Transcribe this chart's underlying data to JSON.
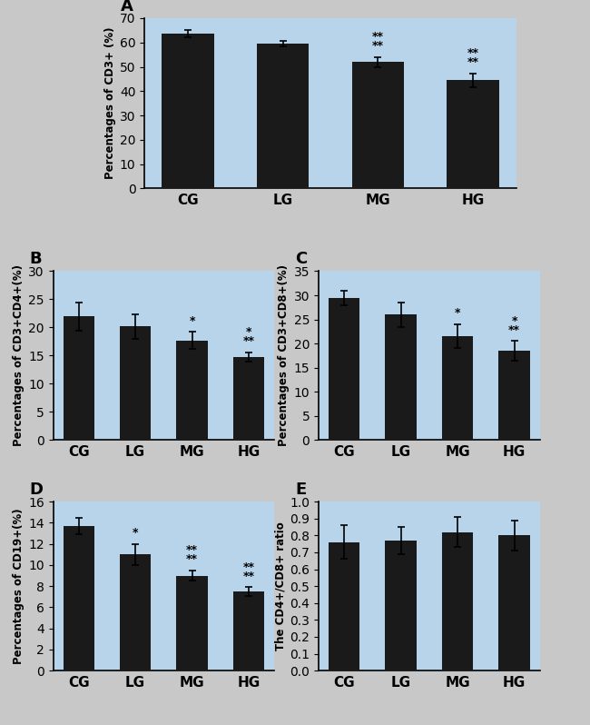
{
  "categories": [
    "CG",
    "LG",
    "MG",
    "HG"
  ],
  "panel_A": {
    "label": "A",
    "values": [
      63.5,
      59.5,
      52.0,
      44.5
    ],
    "errors": [
      1.5,
      1.2,
      2.0,
      2.8
    ],
    "ylabel": "Percentages of CD3+ (%)",
    "ylim": [
      0,
      70
    ],
    "yticks": [
      0,
      10,
      20,
      30,
      40,
      50,
      60,
      70
    ],
    "significance": [
      "",
      "",
      "**\n**",
      "**\n**"
    ]
  },
  "panel_B": {
    "label": "B",
    "values": [
      22.0,
      20.2,
      17.7,
      14.8
    ],
    "errors": [
      2.5,
      2.2,
      1.5,
      0.8
    ],
    "ylabel": "Percentages of CD3+CD4+(%)",
    "ylim": [
      0,
      30
    ],
    "yticks": [
      0,
      5,
      10,
      15,
      20,
      25,
      30
    ],
    "significance": [
      "",
      "",
      "*",
      "**\n*"
    ]
  },
  "panel_C": {
    "label": "C",
    "values": [
      29.5,
      26.0,
      21.5,
      18.5
    ],
    "errors": [
      1.5,
      2.5,
      2.5,
      2.0
    ],
    "ylabel": "Percentages of CD3+CD8+(%)",
    "ylim": [
      0,
      35
    ],
    "yticks": [
      0,
      5,
      10,
      15,
      20,
      25,
      30,
      35
    ],
    "significance": [
      "",
      "",
      "*",
      "**\n*"
    ]
  },
  "panel_D": {
    "label": "D",
    "values": [
      13.7,
      11.0,
      9.0,
      7.5
    ],
    "errors": [
      0.8,
      1.0,
      0.5,
      0.4
    ],
    "ylabel": "Percentages of CD19+(%)",
    "ylim": [
      0,
      16
    ],
    "yticks": [
      0,
      2,
      4,
      6,
      8,
      10,
      12,
      14,
      16
    ],
    "significance": [
      "",
      "*",
      "**\n**",
      "**\n**"
    ]
  },
  "panel_E": {
    "label": "E",
    "values": [
      0.76,
      0.77,
      0.82,
      0.8
    ],
    "errors": [
      0.1,
      0.08,
      0.09,
      0.09
    ],
    "ylabel": "The CD4+/CD8+ ratio",
    "ylim": [
      0,
      1.0
    ],
    "yticks": [
      0,
      0.1,
      0.2,
      0.3,
      0.4,
      0.5,
      0.6,
      0.7,
      0.8,
      0.9,
      1.0
    ],
    "significance": [
      "",
      "",
      "",
      ""
    ]
  },
  "bar_color": "#1a1a1a",
  "bg_color": "#b8d4ea",
  "fig_bg": "#c8c8c8",
  "label_fontsize": 13,
  "tick_fontsize": 10,
  "ylabel_fontsize": 8.5,
  "sig_fontsize": 9,
  "cat_fontsize": 11
}
